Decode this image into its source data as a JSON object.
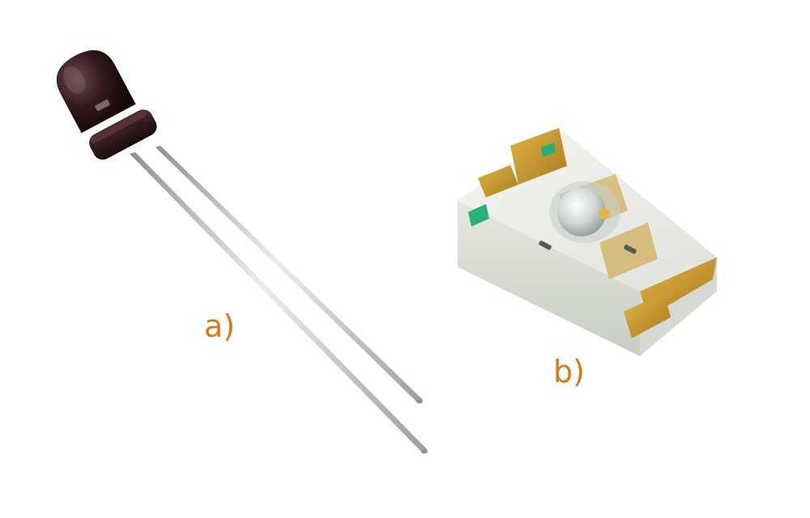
{
  "captions": {
    "a": "a)",
    "b": "b)"
  },
  "colors": {
    "caption": "#d97a16",
    "through_hole_body": "#2a1518",
    "smd_body": "#e9ece4",
    "smd_pad_gold": "#c99a2c",
    "smd_marker_green": "#27b07a",
    "lead_metal": "#bfc2c0"
  },
  "components": {
    "a": "through-hole-photodiode",
    "b": "smd-photodiode"
  }
}
